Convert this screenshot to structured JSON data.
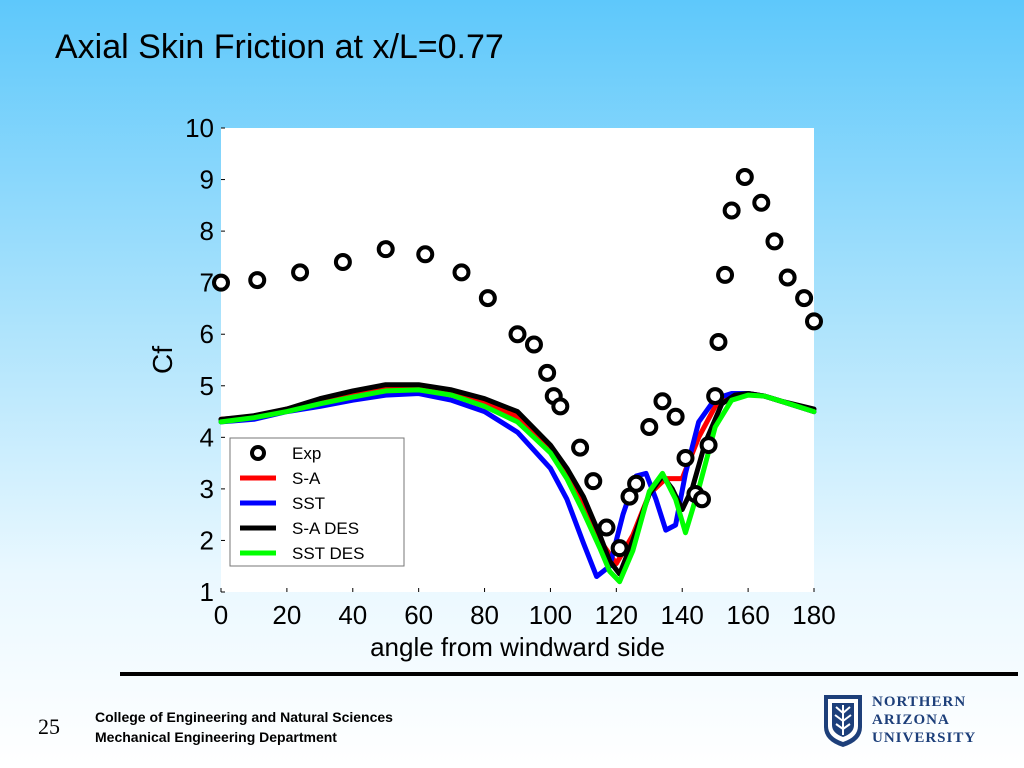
{
  "slide": {
    "title": "Axial Skin Friction at x/L=0.77",
    "page_number": "25",
    "footer_line1": "College of Engineering and Natural Sciences",
    "footer_line2": "Mechanical Engineering Department",
    "logo_line1": "NORTHERN",
    "logo_line2": "ARIZONA",
    "logo_line3": "UNIVERSITY"
  },
  "colors": {
    "exp": "#000000",
    "sa": "#ff0000",
    "sst": "#0000ff",
    "sa_des": "#000000",
    "sst_des": "#00ff00",
    "logo_blue": "#1d3f7a"
  },
  "chart_data": {
    "type": "line",
    "title": "",
    "xlabel": "angle from windward side",
    "ylabel": "Cf",
    "xlim": [
      0,
      180
    ],
    "ylim": [
      1,
      10
    ],
    "x_ticks": [
      0,
      20,
      40,
      60,
      80,
      100,
      120,
      140,
      160,
      180
    ],
    "y_ticks": [
      1,
      2,
      3,
      4,
      5,
      6,
      7,
      8,
      9,
      10
    ],
    "grid": false,
    "legend_position": "lower-left",
    "series": [
      {
        "name": "Exp",
        "style": "markers",
        "x": [
          0,
          11,
          24,
          37,
          50,
          62,
          73,
          81,
          90,
          95,
          99,
          101,
          103,
          109,
          113,
          117,
          121,
          124,
          126,
          130,
          134,
          138,
          141,
          144,
          146,
          148,
          150,
          151,
          153,
          155,
          159,
          164,
          168,
          172,
          177,
          180
        ],
        "y": [
          7.0,
          7.05,
          7.2,
          7.4,
          7.65,
          7.55,
          7.2,
          6.7,
          6.0,
          5.8,
          5.25,
          4.8,
          4.6,
          3.8,
          3.15,
          2.25,
          1.85,
          2.85,
          3.1,
          4.2,
          4.7,
          4.4,
          3.6,
          2.9,
          2.8,
          3.85,
          4.8,
          5.85,
          7.15,
          8.4,
          9.05,
          8.55,
          7.8,
          7.1,
          6.7,
          6.25
        ]
      },
      {
        "name": "S-A",
        "style": "line",
        "x": [
          0,
          10,
          20,
          30,
          40,
          50,
          60,
          70,
          80,
          90,
          100,
          105,
          110,
          115,
          120,
          125,
          130,
          135,
          140,
          145,
          150,
          155,
          160,
          165,
          170,
          180
        ],
        "y": [
          4.35,
          4.4,
          4.55,
          4.7,
          4.85,
          4.98,
          4.98,
          4.88,
          4.7,
          4.4,
          3.75,
          3.25,
          2.65,
          2.0,
          1.55,
          2.1,
          2.9,
          3.2,
          3.2,
          4.0,
          4.6,
          4.8,
          4.85,
          4.8,
          4.7,
          4.5
        ]
      },
      {
        "name": "SST",
        "style": "line",
        "x": [
          0,
          10,
          20,
          30,
          40,
          50,
          60,
          70,
          80,
          90,
          100,
          105,
          110,
          114,
          118,
          122,
          126,
          129,
          132,
          135,
          138,
          141,
          145,
          150,
          155,
          160,
          165,
          170,
          180
        ],
        "y": [
          4.3,
          4.35,
          4.5,
          4.6,
          4.72,
          4.82,
          4.85,
          4.72,
          4.5,
          4.1,
          3.4,
          2.8,
          1.95,
          1.3,
          1.5,
          2.5,
          3.25,
          3.3,
          2.8,
          2.2,
          2.3,
          3.3,
          4.3,
          4.75,
          4.85,
          4.85,
          4.8,
          4.7,
          4.5
        ]
      },
      {
        "name": "S-A DES",
        "style": "line",
        "x": [
          0,
          10,
          20,
          30,
          40,
          50,
          60,
          70,
          80,
          90,
          100,
          105,
          110,
          115,
          118,
          121,
          125,
          130,
          134,
          137,
          140,
          143,
          147,
          152,
          156,
          160,
          165,
          170,
          180
        ],
        "y": [
          4.35,
          4.42,
          4.55,
          4.75,
          4.9,
          5.02,
          5.02,
          4.92,
          4.75,
          4.5,
          3.85,
          3.4,
          2.85,
          2.1,
          1.6,
          1.35,
          2.0,
          2.9,
          3.25,
          3.0,
          2.6,
          3.0,
          3.9,
          4.65,
          4.82,
          4.85,
          4.8,
          4.7,
          4.55
        ]
      },
      {
        "name": "SST DES",
        "style": "line",
        "x": [
          0,
          10,
          20,
          30,
          40,
          50,
          60,
          70,
          80,
          90,
          100,
          105,
          110,
          115,
          118,
          121,
          125,
          130,
          134,
          138,
          141,
          145,
          150,
          155,
          160,
          165,
          170,
          180
        ],
        "y": [
          4.3,
          4.38,
          4.5,
          4.65,
          4.78,
          4.9,
          4.92,
          4.82,
          4.6,
          4.3,
          3.7,
          3.2,
          2.55,
          1.85,
          1.4,
          1.2,
          1.8,
          2.95,
          3.3,
          2.8,
          2.15,
          3.0,
          4.2,
          4.72,
          4.82,
          4.8,
          4.7,
          4.5
        ]
      }
    ]
  }
}
